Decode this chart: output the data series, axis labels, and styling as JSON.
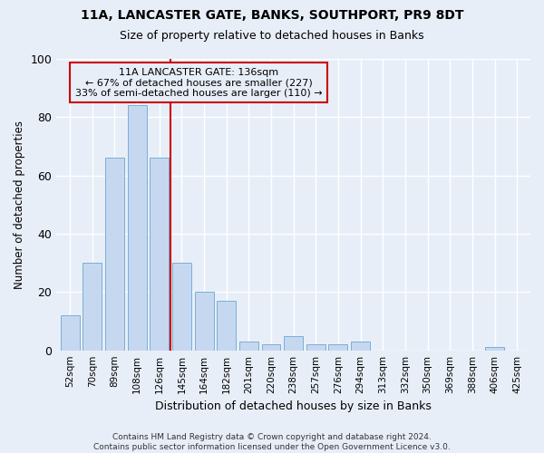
{
  "title1": "11A, LANCASTER GATE, BANKS, SOUTHPORT, PR9 8DT",
  "title2": "Size of property relative to detached houses in Banks",
  "xlabel": "Distribution of detached houses by size in Banks",
  "ylabel": "Number of detached properties",
  "categories": [
    "52sqm",
    "70sqm",
    "89sqm",
    "108sqm",
    "126sqm",
    "145sqm",
    "164sqm",
    "182sqm",
    "201sqm",
    "220sqm",
    "238sqm",
    "257sqm",
    "276sqm",
    "294sqm",
    "313sqm",
    "332sqm",
    "350sqm",
    "369sqm",
    "388sqm",
    "406sqm",
    "425sqm"
  ],
  "values": [
    12,
    30,
    66,
    84,
    66,
    30,
    20,
    17,
    3,
    2,
    5,
    2,
    2,
    3,
    0,
    0,
    0,
    0,
    0,
    1,
    0
  ],
  "bar_color": "#c5d8f0",
  "bar_edgecolor": "#7aafd4",
  "vline_color": "#cc0000",
  "vline_position": 4.5,
  "annotation_box_text": "11A LANCASTER GATE: 136sqm\n← 67% of detached houses are smaller (227)\n33% of semi-detached houses are larger (110) →",
  "ylim": [
    0,
    100
  ],
  "yticks": [
    0,
    20,
    40,
    60,
    80,
    100
  ],
  "background_color": "#e8eef8",
  "grid_color": "#ffffff",
  "footer": "Contains HM Land Registry data © Crown copyright and database right 2024.\nContains public sector information licensed under the Open Government Licence v3.0."
}
